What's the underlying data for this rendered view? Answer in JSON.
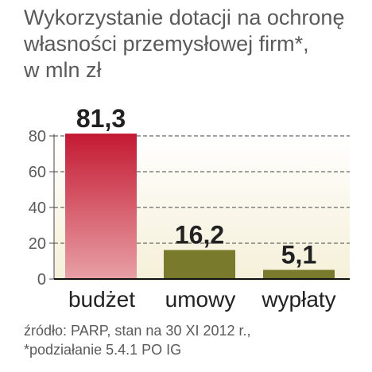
{
  "title_lines": [
    "Wykorzystanie dotacji na ochronę",
    "własności przemysłowej firm*,",
    "w mln zł"
  ],
  "source_lines": [
    "źródło: PARP, stan na 30 XI 2012 r.,",
    "*podziałanie 5.4.1 PO IG"
  ],
  "colors": {
    "bar_budzet_top": "#c41a32",
    "bar_budzet_bottom": "#e8a0a6",
    "bar_olive": "#7a7a2c",
    "plot_bg_top": "#ffffff",
    "plot_bg_bottom": "#f5f0d8",
    "grid": "#444444",
    "text": "#222222",
    "muted": "#5a5a5a"
  },
  "chart_data": {
    "type": "bar",
    "categories": [
      "budżet",
      "umowy",
      "wypłaty"
    ],
    "values": [
      81.3,
      16.2,
      5.1
    ],
    "value_labels": [
      "81,3",
      "16,2",
      "5,1"
    ],
    "yticks": [
      0,
      20,
      40,
      60,
      80
    ],
    "ylim": [
      0,
      90
    ],
    "grid": "dashed horizontal"
  }
}
